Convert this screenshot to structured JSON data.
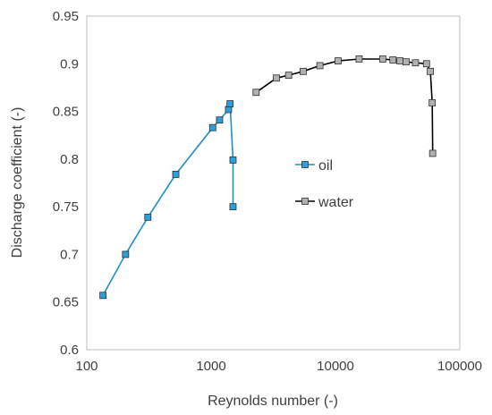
{
  "chart_data": {
    "type": "scatter",
    "xlabel": "Reynolds number (-)",
    "ylabel": "Discharge coefficient (-)",
    "xscale": "log",
    "xlim": [
      100,
      100000
    ],
    "ylim": [
      0.6,
      0.95
    ],
    "x_ticks": [
      100,
      1000,
      10000,
      100000
    ],
    "x_tick_labels": [
      "100",
      "1000",
      "10000",
      "100000"
    ],
    "y_ticks": [
      0.6,
      0.65,
      0.7,
      0.75,
      0.8,
      0.85,
      0.9,
      0.95
    ],
    "y_tick_labels": [
      "0.6",
      "0.65",
      "0.7",
      "0.75",
      "0.8",
      "0.85",
      "0.9",
      "0.95"
    ],
    "grid": false,
    "legend_position": "center-right",
    "series": [
      {
        "name": "oil",
        "color": "#1f8fc8",
        "marker_fill": "#2e9fd8",
        "marker": "square",
        "points": [
          [
            135,
            0.657
          ],
          [
            205,
            0.7
          ],
          [
            310,
            0.739
          ],
          [
            520,
            0.784
          ],
          [
            1030,
            0.833
          ],
          [
            1170,
            0.841
          ],
          [
            1380,
            0.852
          ],
          [
            1420,
            0.858
          ],
          [
            1500,
            0.799
          ],
          [
            1500,
            0.75
          ]
        ]
      },
      {
        "name": "water",
        "color": "#000000",
        "marker_fill": "#b0b0b0",
        "marker": "square",
        "points": [
          [
            2300,
            0.87
          ],
          [
            3350,
            0.885
          ],
          [
            4200,
            0.888
          ],
          [
            5500,
            0.892
          ],
          [
            7500,
            0.898
          ],
          [
            10500,
            0.903
          ],
          [
            15500,
            0.905
          ],
          [
            24000,
            0.905
          ],
          [
            29000,
            0.904
          ],
          [
            33000,
            0.903
          ],
          [
            37000,
            0.902
          ],
          [
            44000,
            0.901
          ],
          [
            54000,
            0.9
          ],
          [
            58000,
            0.892
          ],
          [
            60000,
            0.859
          ],
          [
            60500,
            0.806
          ]
        ]
      }
    ]
  }
}
